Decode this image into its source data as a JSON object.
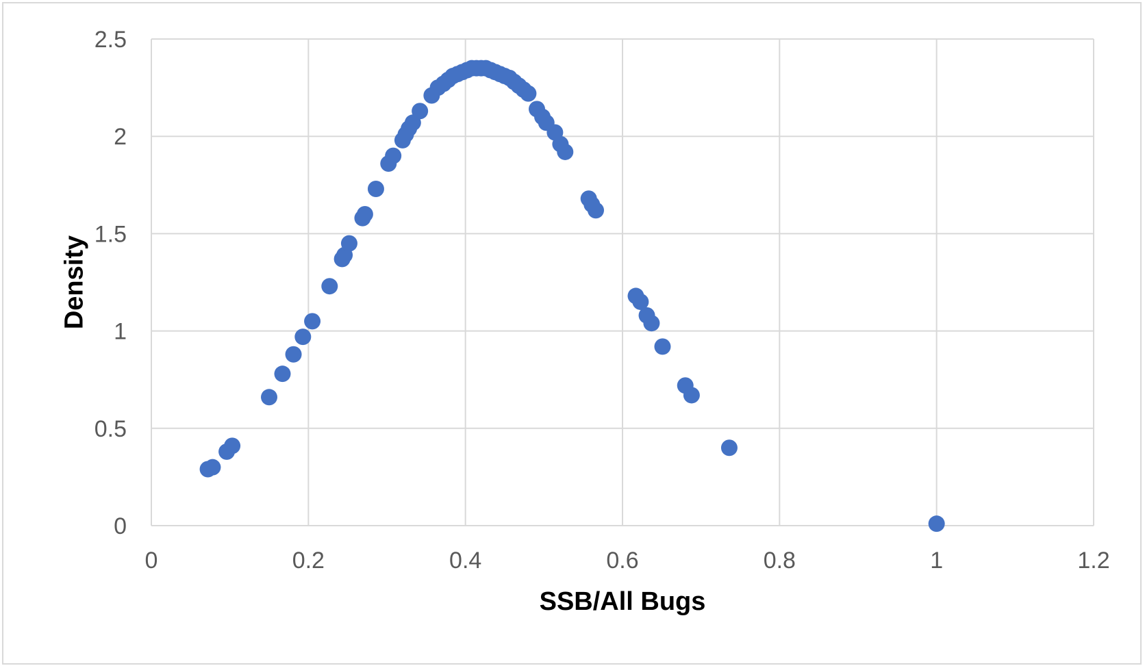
{
  "chart_data": {
    "type": "scatter",
    "title": "",
    "xlabel": "SSB/All Bugs",
    "ylabel": "Density",
    "xlim": [
      0,
      1.2
    ],
    "ylim": [
      0,
      2.5
    ],
    "x_ticks": [
      "0",
      "0.2",
      "0.4",
      "0.6",
      "0.8",
      "1",
      "1.2"
    ],
    "y_ticks": [
      "0",
      "0.5",
      "1",
      "1.5",
      "2",
      "2.5"
    ],
    "grid": true,
    "legend": "none",
    "marker_color": "#4472C4",
    "series": [
      {
        "points": [
          [
            0.072,
            0.29
          ],
          [
            0.078,
            0.3
          ],
          [
            0.096,
            0.38
          ],
          [
            0.103,
            0.41
          ],
          [
            0.15,
            0.66
          ],
          [
            0.167,
            0.78
          ],
          [
            0.181,
            0.88
          ],
          [
            0.193,
            0.97
          ],
          [
            0.205,
            1.05
          ],
          [
            0.227,
            1.23
          ],
          [
            0.243,
            1.37
          ],
          [
            0.246,
            1.39
          ],
          [
            0.252,
            1.45
          ],
          [
            0.269,
            1.58
          ],
          [
            0.272,
            1.6
          ],
          [
            0.286,
            1.73
          ],
          [
            0.302,
            1.86
          ],
          [
            0.308,
            1.9
          ],
          [
            0.32,
            1.98
          ],
          [
            0.324,
            2.01
          ],
          [
            0.328,
            2.04
          ],
          [
            0.333,
            2.07
          ],
          [
            0.342,
            2.13
          ],
          [
            0.357,
            2.21
          ],
          [
            0.365,
            2.25
          ],
          [
            0.372,
            2.27
          ],
          [
            0.378,
            2.29
          ],
          [
            0.384,
            2.31
          ],
          [
            0.39,
            2.32
          ],
          [
            0.396,
            2.33
          ],
          [
            0.402,
            2.34
          ],
          [
            0.408,
            2.35
          ],
          [
            0.414,
            2.35
          ],
          [
            0.42,
            2.35
          ],
          [
            0.426,
            2.35
          ],
          [
            0.432,
            2.34
          ],
          [
            0.438,
            2.33
          ],
          [
            0.444,
            2.32
          ],
          [
            0.45,
            2.31
          ],
          [
            0.456,
            2.3
          ],
          [
            0.462,
            2.28
          ],
          [
            0.468,
            2.26
          ],
          [
            0.474,
            2.24
          ],
          [
            0.48,
            2.22
          ],
          [
            0.491,
            2.14
          ],
          [
            0.498,
            2.1
          ],
          [
            0.503,
            2.07
          ],
          [
            0.514,
            2.02
          ],
          [
            0.521,
            1.96
          ],
          [
            0.527,
            1.92
          ],
          [
            0.557,
            1.68
          ],
          [
            0.561,
            1.65
          ],
          [
            0.566,
            1.62
          ],
          [
            0.617,
            1.18
          ],
          [
            0.623,
            1.15
          ],
          [
            0.631,
            1.08
          ],
          [
            0.637,
            1.04
          ],
          [
            0.651,
            0.92
          ],
          [
            0.68,
            0.72
          ],
          [
            0.688,
            0.67
          ],
          [
            0.736,
            0.4
          ],
          [
            1.0,
            0.01
          ]
        ]
      }
    ]
  }
}
